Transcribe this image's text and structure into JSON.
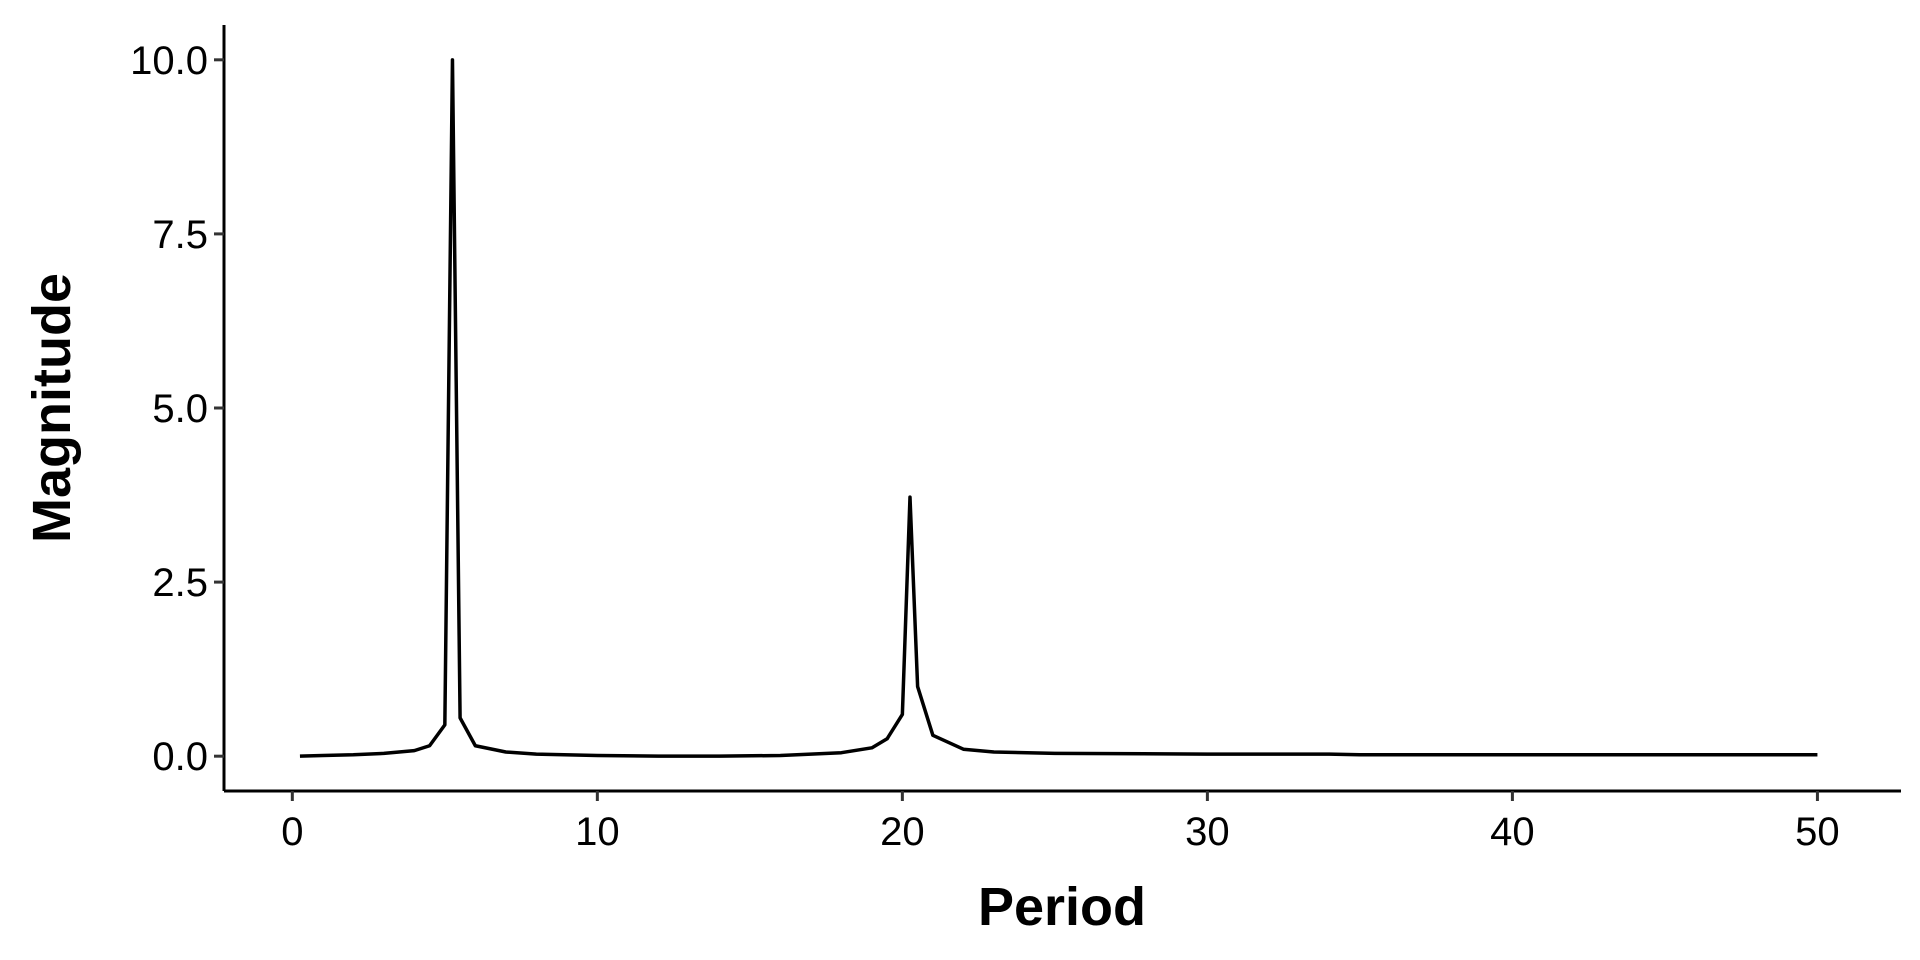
{
  "chart_data": {
    "type": "line",
    "x_label": "Period",
    "y_label": "Magnitude",
    "x": [
      0.25,
      1,
      2,
      3,
      4,
      4.5,
      5,
      5.25,
      5.5,
      6,
      7,
      8,
      10,
      12,
      14,
      16,
      18,
      19,
      19.5,
      20,
      20.25,
      20.5,
      21,
      22,
      23,
      25,
      30,
      34,
      35,
      40,
      45,
      50
    ],
    "series": [
      {
        "color": "#000000",
        "values": [
          0,
          0.01,
          0.02,
          0.04,
          0.08,
          0.15,
          0.45,
          10,
          0.55,
          0.15,
          0.06,
          0.03,
          0.01,
          0,
          0,
          0.01,
          0.05,
          0.12,
          0.25,
          0.6,
          3.72,
          1.0,
          0.3,
          0.1,
          0.06,
          0.04,
          0.03,
          0.03,
          0.02,
          0.02,
          0.02,
          0.02
        ]
      }
    ],
    "xlim": [
      -2.24,
      52.74
    ],
    "ylim": [
      -0.5,
      10.5
    ],
    "xticks": [
      0,
      10,
      20,
      30,
      40,
      50
    ],
    "yticks": [
      {
        "value": 0,
        "label": "0.0"
      },
      2.5,
      {
        "value": 5,
        "label": "5.0"
      },
      7.5,
      {
        "value": 10,
        "label": "10.0"
      }
    ],
    "grid": false
  }
}
